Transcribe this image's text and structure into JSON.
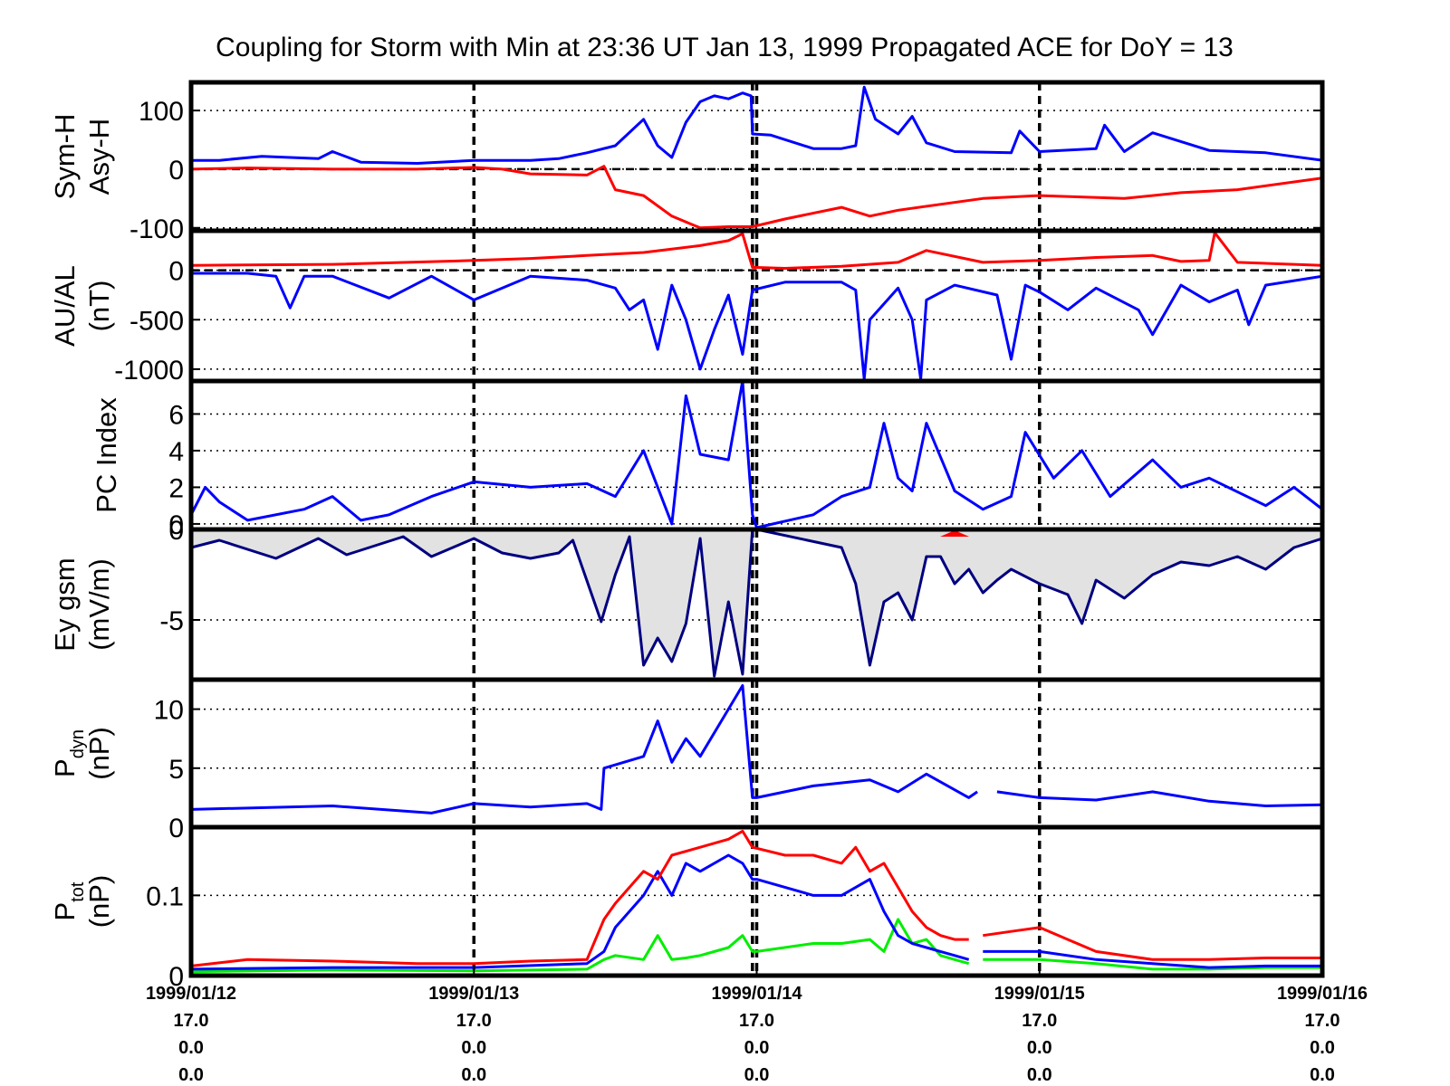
{
  "chart_data": {
    "title": "Coupling for Storm with Min at 23:36 UT Jan 13, 1999  Propagated ACE for DoY = 13",
    "type": "line",
    "x_unit": "day (0 = 1999/01/12 00:00 UT)",
    "xlim": [
      0,
      4
    ],
    "x_ticks": [
      {
        "date": "1999/01/12",
        "l2": "17.0",
        "l3": "0.0",
        "l4": "0.0"
      },
      {
        "date": "1999/01/13",
        "l2": "17.0",
        "l3": "0.0",
        "l4": "0.0"
      },
      {
        "date": "1999/01/14",
        "l2": "17.0",
        "l3": "0.0",
        "l4": "0.0"
      },
      {
        "date": "1999/01/15",
        "l2": "17.0",
        "l3": "0.0",
        "l4": "0.0"
      },
      {
        "date": "1999/01/16",
        "l2": "17.0",
        "l3": "0.0",
        "l4": "0.0"
      }
    ],
    "storm_min_x": 1.985,
    "colors": {
      "blue": "#0000ff",
      "red": "#ff0000",
      "green": "#00ee00",
      "shade": "#e2e2e2",
      "navy": "#000080"
    },
    "panels": [
      {
        "id": "symh",
        "ylabel_lines": [
          "Sym-H",
          "Asy-H"
        ],
        "ylim": [
          -105,
          148
        ],
        "yticks": [
          100,
          0,
          -100
        ],
        "yticklabels": [
          "100",
          "0",
          "-100"
        ],
        "zero_line": 0,
        "series": [
          {
            "color": "blue",
            "x": [
              0,
              0.1,
              0.25,
              0.45,
              0.5,
              0.6,
              0.8,
              1.0,
              1.2,
              1.3,
              1.4,
              1.5,
              1.6,
              1.65,
              1.7,
              1.75,
              1.8,
              1.85,
              1.9,
              1.95,
              1.98,
              1.985,
              2.05,
              2.2,
              2.3,
              2.35,
              2.38,
              2.42,
              2.5,
              2.55,
              2.6,
              2.7,
              2.9,
              2.93,
              3.0,
              3.2,
              3.23,
              3.3,
              3.4,
              3.6,
              3.8,
              4.0
            ],
            "y": [
              15,
              15,
              22,
              18,
              30,
              12,
              10,
              15,
              15,
              18,
              28,
              40,
              85,
              40,
              20,
              80,
              115,
              125,
              120,
              130,
              125,
              60,
              58,
              35,
              35,
              40,
              140,
              85,
              60,
              90,
              45,
              30,
              28,
              65,
              30,
              35,
              75,
              30,
              62,
              32,
              28,
              15
            ]
          },
          {
            "color": "red",
            "x": [
              0,
              0.2,
              0.5,
              0.8,
              1.0,
              1.1,
              1.2,
              1.4,
              1.46,
              1.5,
              1.6,
              1.7,
              1.8,
              1.9,
              1.985,
              2.1,
              2.3,
              2.4,
              2.5,
              2.8,
              3.0,
              3.3,
              3.5,
              3.7,
              4.0
            ],
            "y": [
              0,
              2,
              0,
              0,
              3,
              0,
              -8,
              -10,
              5,
              -35,
              -45,
              -80,
              -100,
              -98,
              -98,
              -85,
              -65,
              -80,
              -70,
              -50,
              -45,
              -50,
              -40,
              -35,
              -15
            ]
          }
        ]
      },
      {
        "id": "aual",
        "ylabel_lines": [
          "AU/AL",
          "(nT)"
        ],
        "ylim": [
          -1120,
          400
        ],
        "yticks": [
          0,
          -500,
          -1000
        ],
        "yticklabels": [
          "0",
          "-500",
          "-1000"
        ],
        "zero_line": 0,
        "series": [
          {
            "color": "red",
            "x": [
              0,
              0.5,
              1.0,
              1.2,
              1.4,
              1.6,
              1.8,
              1.9,
              1.95,
              1.985,
              2.1,
              2.3,
              2.5,
              2.6,
              2.8,
              3.0,
              3.2,
              3.4,
              3.5,
              3.6,
              3.62,
              3.7,
              4.0
            ],
            "y": [
              50,
              60,
              100,
              120,
              150,
              180,
              250,
              300,
              370,
              30,
              20,
              40,
              80,
              200,
              80,
              100,
              130,
              150,
              90,
              100,
              380,
              80,
              50
            ]
          },
          {
            "color": "blue",
            "x": [
              0,
              0.2,
              0.3,
              0.35,
              0.4,
              0.5,
              0.7,
              0.85,
              1.0,
              1.2,
              1.4,
              1.5,
              1.55,
              1.6,
              1.65,
              1.7,
              1.75,
              1.8,
              1.85,
              1.9,
              1.95,
              1.985,
              2.1,
              2.3,
              2.35,
              2.38,
              2.4,
              2.5,
              2.55,
              2.58,
              2.6,
              2.7,
              2.85,
              2.9,
              2.95,
              3.0,
              3.1,
              3.2,
              3.35,
              3.4,
              3.5,
              3.6,
              3.7,
              3.74,
              3.8,
              4.0
            ],
            "y": [
              -30,
              -30,
              -60,
              -380,
              -60,
              -60,
              -280,
              -60,
              -300,
              -60,
              -100,
              -180,
              -400,
              -300,
              -800,
              -150,
              -500,
              -1000,
              -600,
              -250,
              -850,
              -200,
              -120,
              -120,
              -200,
              -1100,
              -500,
              -180,
              -500,
              -1100,
              -300,
              -150,
              -250,
              -900,
              -150,
              -220,
              -400,
              -180,
              -400,
              -650,
              -150,
              -320,
              -200,
              -550,
              -150,
              -60
            ]
          }
        ]
      },
      {
        "id": "pc",
        "ylabel_lines": [
          "PC Index"
        ],
        "ylim": [
          -0.3,
          7.8
        ],
        "yticks": [
          6,
          4,
          2,
          0
        ],
        "yticklabels": [
          "6",
          "4",
          "2",
          "0"
        ],
        "series": [
          {
            "color": "blue",
            "x": [
              0,
              0.05,
              0.1,
              0.2,
              0.4,
              0.5,
              0.6,
              0.7,
              0.85,
              1.0,
              1.2,
              1.4,
              1.5,
              1.6,
              1.7,
              1.75,
              1.8,
              1.9,
              1.95,
              1.985,
              2.0,
              2.2,
              2.3,
              2.4,
              2.45,
              2.5,
              2.55,
              2.6,
              2.7,
              2.8,
              2.9,
              2.95,
              3.05,
              3.15,
              3.25,
              3.4,
              3.5,
              3.6,
              3.8,
              3.9,
              4.0
            ],
            "y": [
              0.5,
              2.0,
              1.2,
              0.2,
              0.8,
              1.5,
              0.2,
              0.5,
              1.5,
              2.3,
              2.0,
              2.2,
              1.5,
              4.0,
              0.0,
              7.0,
              3.8,
              3.5,
              7.8,
              0.5,
              -0.2,
              0.5,
              1.5,
              2.0,
              5.5,
              2.5,
              1.8,
              5.5,
              1.8,
              0.8,
              1.5,
              5.0,
              2.5,
              4.0,
              1.5,
              3.5,
              2.0,
              2.5,
              1.0,
              2.0,
              0.8
            ]
          }
        ]
      },
      {
        "id": "ey",
        "ylabel_lines": [
          "Ey gsm",
          "(mV/m)"
        ],
        "ylim": [
          -8.3,
          0
        ],
        "yticks": [
          0,
          -5
        ],
        "yticklabels": [
          "0",
          "-5"
        ],
        "series": [
          {
            "color": "navy",
            "fill": "shade",
            "x": [
              0,
              0.1,
              0.3,
              0.45,
              0.55,
              0.75,
              0.85,
              1.0,
              1.1,
              1.2,
              1.3,
              1.35,
              1.45,
              1.5,
              1.55,
              1.6,
              1.65,
              1.7,
              1.75,
              1.8,
              1.85,
              1.9,
              1.95,
              1.985,
              2.0,
              2.3,
              2.35,
              2.4,
              2.45,
              2.5,
              2.55,
              2.6,
              2.65,
              2.7,
              2.75,
              2.8,
              2.85,
              2.9,
              3.0,
              3.1,
              3.15,
              3.2,
              3.3,
              3.4,
              3.5,
              3.6,
              3.7,
              3.8,
              3.9,
              4.0
            ],
            "y": [
              -1.0,
              -0.6,
              -1.6,
              -0.5,
              -1.4,
              -0.4,
              -1.5,
              -0.5,
              -1.3,
              -1.6,
              -1.3,
              -0.6,
              -5.1,
              -2.5,
              -0.4,
              -7.5,
              -6.0,
              -7.3,
              -5.2,
              -0.5,
              -8.1,
              -4.0,
              -8.0,
              0,
              0,
              -1.0,
              -3.0,
              -7.5,
              -4.0,
              -3.5,
              -5.0,
              -1.5,
              -1.5,
              -3.0,
              -2.2,
              -3.5,
              -2.8,
              -2.2,
              -3.0,
              -3.6,
              -5.2,
              -2.8,
              -3.8,
              -2.5,
              -1.8,
              -2.0,
              -1.5,
              -2.2,
              -1.0,
              -0.5
            ]
          }
        ],
        "red_marker_x": 2.7
      },
      {
        "id": "pdyn",
        "ylabel_lines": [
          "P",
          "dyn",
          "(nP)"
        ],
        "ylim": [
          0,
          12.5
        ],
        "yticks": [
          10,
          5,
          0
        ],
        "yticklabels": [
          "10",
          "5",
          "0"
        ],
        "series": [
          {
            "color": "blue",
            "x": [
              0,
              0.5,
              0.85,
              1.0,
              1.2,
              1.4,
              1.45,
              1.46,
              1.6,
              1.65,
              1.7,
              1.75,
              1.8,
              1.9,
              1.95,
              1.985,
              2.0,
              2.2,
              2.4,
              2.5,
              2.6,
              2.75,
              2.78
            ],
            "y": [
              1.5,
              1.8,
              1.2,
              2.0,
              1.7,
              2.0,
              1.5,
              5.0,
              6.0,
              9.0,
              5.5,
              7.5,
              6.0,
              10.0,
              12.0,
              2.5,
              2.5,
              3.5,
              4.0,
              3.0,
              4.5,
              2.5,
              3.0
            ]
          },
          {
            "color": "blue",
            "x": [
              2.85,
              3.0,
              3.2,
              3.4,
              3.6,
              3.8,
              4.0
            ],
            "y": [
              3.0,
              2.5,
              2.3,
              3.0,
              2.2,
              1.8,
              1.9
            ]
          }
        ]
      },
      {
        "id": "ptot",
        "ylabel_lines": [
          "P",
          "tot",
          "(nP)"
        ],
        "ylim": [
          0,
          0.185
        ],
        "yticks": [
          0.1,
          0
        ],
        "yticklabels": [
          "0.1",
          "0"
        ],
        "series": [
          {
            "color": "green",
            "x": [
              0,
              0.5,
              1.0,
              1.4,
              1.46,
              1.5,
              1.6,
              1.65,
              1.7,
              1.75,
              1.8,
              1.9,
              1.95,
              1.985,
              2.0,
              2.2,
              2.3,
              2.4,
              2.45,
              2.5,
              2.55,
              2.6,
              2.65,
              2.7,
              2.75
            ],
            "y": [
              0.005,
              0.007,
              0.006,
              0.008,
              0.02,
              0.025,
              0.02,
              0.05,
              0.02,
              0.022,
              0.025,
              0.035,
              0.05,
              0.03,
              0.03,
              0.04,
              0.04,
              0.045,
              0.03,
              0.07,
              0.04,
              0.045,
              0.025,
              0.02,
              0.015
            ]
          },
          {
            "color": "green",
            "x": [
              2.8,
              3.0,
              3.2,
              3.4,
              3.6,
              3.8,
              4.0
            ],
            "y": [
              0.02,
              0.02,
              0.015,
              0.008,
              0.008,
              0.01,
              0.01
            ]
          },
          {
            "color": "blue",
            "x": [
              0,
              0.5,
              1.0,
              1.4,
              1.46,
              1.5,
              1.6,
              1.65,
              1.7,
              1.75,
              1.8,
              1.9,
              1.95,
              1.985,
              2.0,
              2.2,
              2.3,
              2.4,
              2.45,
              2.5,
              2.55,
              2.6,
              2.65,
              2.7,
              2.75
            ],
            "y": [
              0.008,
              0.01,
              0.01,
              0.015,
              0.03,
              0.06,
              0.1,
              0.13,
              0.1,
              0.14,
              0.13,
              0.15,
              0.14,
              0.12,
              0.12,
              0.1,
              0.1,
              0.12,
              0.08,
              0.05,
              0.04,
              0.035,
              0.03,
              0.025,
              0.02
            ]
          },
          {
            "color": "blue",
            "x": [
              2.8,
              3.0,
              3.2,
              3.4,
              3.6,
              3.8,
              4.0
            ],
            "y": [
              0.03,
              0.03,
              0.02,
              0.015,
              0.01,
              0.012,
              0.012
            ]
          },
          {
            "color": "red",
            "x": [
              0,
              0.2,
              0.5,
              0.8,
              1.0,
              1.2,
              1.4,
              1.46,
              1.5,
              1.6,
              1.65,
              1.7,
              1.8,
              1.9,
              1.95,
              1.985,
              2.1,
              2.2,
              2.3,
              2.35,
              2.4,
              2.45,
              2.5,
              2.55,
              2.6,
              2.65,
              2.7,
              2.75
            ],
            "y": [
              0.012,
              0.02,
              0.018,
              0.015,
              0.015,
              0.018,
              0.02,
              0.07,
              0.09,
              0.13,
              0.12,
              0.15,
              0.16,
              0.17,
              0.18,
              0.16,
              0.15,
              0.15,
              0.14,
              0.16,
              0.13,
              0.14,
              0.11,
              0.08,
              0.06,
              0.05,
              0.045,
              0.045
            ]
          },
          {
            "color": "red",
            "x": [
              2.8,
              2.9,
              3.0,
              3.1,
              3.2,
              3.4,
              3.6,
              3.8,
              4.0
            ],
            "y": [
              0.05,
              0.055,
              0.06,
              0.045,
              0.03,
              0.02,
              0.02,
              0.022,
              0.022
            ]
          }
        ]
      }
    ]
  }
}
